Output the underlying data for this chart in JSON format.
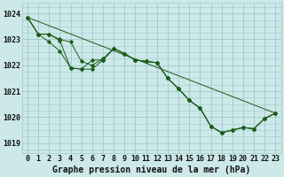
{
  "title": "Graphe pression niveau de la mer (hPa)",
  "x_labels": [
    "0",
    "1",
    "2",
    "3",
    "4",
    "5",
    "6",
    "7",
    "8",
    "9",
    "10",
    "11",
    "12",
    "13",
    "14",
    "15",
    "16",
    "17",
    "18",
    "19",
    "20",
    "21",
    "22",
    "23"
  ],
  "xlim": [
    -0.5,
    23.5
  ],
  "ylim": [
    1018.6,
    1024.4
  ],
  "yticks": [
    1019,
    1020,
    1021,
    1022,
    1023,
    1024
  ],
  "background_color": "#cce8e8",
  "grid_color": "#a0c8c8",
  "line_color": "#1a5c1a",
  "line_straight": [
    1023.85,
    null,
    null,
    null,
    null,
    null,
    null,
    null,
    null,
    null,
    null,
    null,
    null,
    null,
    null,
    null,
    null,
    null,
    null,
    null,
    null,
    null,
    null,
    1020.15
  ],
  "line_zigzag1": [
    1023.85,
    1023.2,
    1022.9,
    1022.55,
    1021.9,
    1021.85,
    1021.85,
    1022.2,
    1022.65,
    1022.45,
    1022.2,
    1022.15,
    1022.1,
    1021.5,
    1021.1,
    1020.65,
    1020.35,
    1019.65,
    1019.4,
    1019.5,
    1019.6,
    1019.55,
    1019.95,
    1020.15
  ],
  "line_zigzag2": [
    1023.85,
    1023.2,
    1023.2,
    1022.95,
    1021.9,
    1021.85,
    1022.2,
    1022.2,
    1022.65,
    1022.45,
    1022.2,
    1022.15,
    1022.1,
    1021.5,
    1021.1,
    1020.65,
    1020.35,
    1019.65,
    1019.4,
    1019.5,
    1019.6,
    1019.55,
    1019.95,
    1020.15
  ],
  "line_zigzag3": [
    1023.85,
    1023.2,
    1023.2,
    1023.0,
    1022.9,
    1022.15,
    1022.0,
    1022.25,
    1022.65,
    1022.45,
    1022.2,
    1022.15,
    1022.1,
    1021.5,
    1021.1,
    1020.65,
    1020.35,
    1019.65,
    1019.4,
    1019.5,
    1019.6,
    1019.55,
    1019.95,
    1020.15
  ],
  "title_fontsize": 7,
  "tick_fontsize": 6
}
